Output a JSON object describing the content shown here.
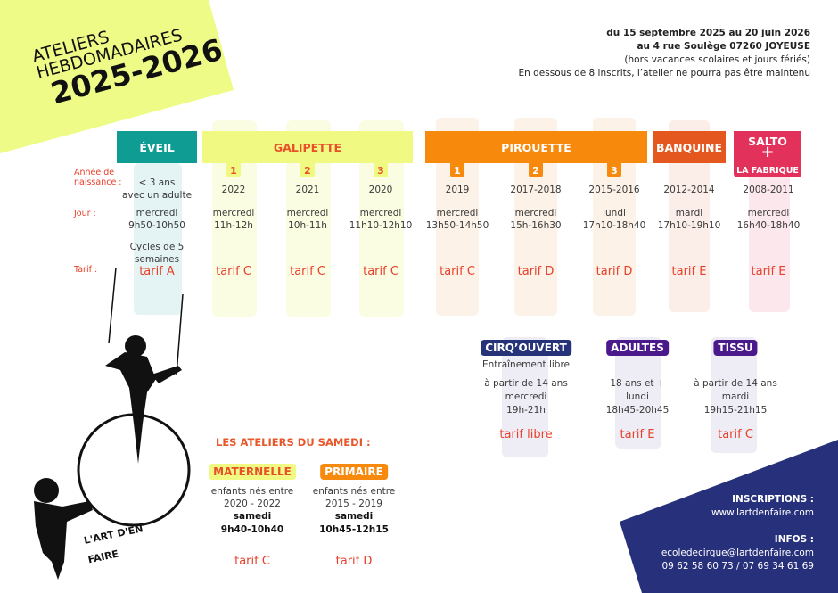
{
  "title": {
    "line1": "ATELIERS",
    "line2": "HEBDOMADAIRES",
    "year": "2025-2026"
  },
  "info": {
    "dates": "du 15 septembre 2025 au 20 juin 2026",
    "address": "au 4 rue Soulège 07260 JOYEUSE",
    "note": "(hors vacances scolaires et jours fériés)",
    "minimum": "En dessous de 8 inscrits, l’atelier ne pourra pas être maintenu"
  },
  "row_labels": {
    "birth": "Année de naissance :",
    "day": "Jour :",
    "price": "Tarif :"
  },
  "groups": {
    "eveil": "ÉVEIL",
    "galipette": "GALIPETTE",
    "pirouette": "PIROUETTE",
    "banquine": "BANQUINE",
    "salto": "SALTO",
    "salto_plus": "+",
    "fabrique": "LA FABRIQUE"
  },
  "columns": [
    {
      "num": "",
      "birth": "< 3 ans\navec un adulte",
      "day": "mercredi",
      "time": "9h50-10h50",
      "extra": "Cycles de 5\nsemaines",
      "tarif": "tarif A"
    },
    {
      "num": "1",
      "birth": "2022",
      "day": "mercredi",
      "time": "11h-12h",
      "tarif": "tarif C"
    },
    {
      "num": "2",
      "birth": "2021",
      "day": "mercredi",
      "time": "10h-11h",
      "tarif": "tarif C"
    },
    {
      "num": "3",
      "birth": "2020",
      "day": "mercredi",
      "time": "11h10-12h10",
      "tarif": "tarif C"
    },
    {
      "num": "1",
      "birth": "2019",
      "day": "mercredi",
      "time": "13h50-14h50",
      "tarif": "tarif C"
    },
    {
      "num": "2",
      "birth": "2017-2018",
      "day": "mercredi",
      "time": "15h-16h30",
      "tarif": "tarif D"
    },
    {
      "num": "3",
      "birth": "2015-2016",
      "day": "lundi",
      "time": "17h10-18h40",
      "tarif": "tarif D"
    },
    {
      "num": "",
      "birth": "2012-2014",
      "day": "mardi",
      "time": "17h10-19h10",
      "tarif": "tarif E"
    },
    {
      "num": "",
      "birth": "2008-2011",
      "day": "mercredi",
      "time": "16h40-18h40",
      "tarif": "tarif E"
    }
  ],
  "evening": [
    {
      "name": "CIRQ’OUVERT",
      "lines": [
        "Entraînement libre",
        "à partir de 14 ans",
        "mercredi",
        "19h-21h"
      ],
      "tarif": "tarif libre"
    },
    {
      "name": "ADULTES",
      "lines": [
        "",
        "18 ans et +",
        "lundi",
        "18h45-20h45"
      ],
      "tarif": "tarif E"
    },
    {
      "name": "TISSU",
      "lines": [
        "",
        "à partir de 14 ans",
        "mardi",
        "19h15-21h15"
      ],
      "tarif": "tarif C"
    }
  ],
  "saturday": {
    "title": "LES ATELIERS DU SAMEDI :",
    "items": [
      {
        "name": "MATERNELLE",
        "born_label": "enfants nés entre",
        "born": "2020 - 2022",
        "day": "samedi",
        "time": "9h40-10h40",
        "tarif": "tarif C"
      },
      {
        "name": "PRIMAIRE",
        "born_label": "enfants nés entre",
        "born": "2015 - 2019",
        "day": "samedi",
        "time": "10h45-12h15",
        "tarif": "tarif D"
      }
    ]
  },
  "contact": {
    "inscriptions_label": "INSCRIPTIONS :",
    "website": "www.lartdenfaire.com",
    "infos_label": "INFOS :",
    "email": "ecoledecirque@lartdenfaire.com",
    "phones": "09 62 58 60 73 / 07 69 34 61 69"
  },
  "logo": {
    "text": "L'ART D'EN FAIRE"
  },
  "colors": {
    "eveil": "#0e9c93",
    "galipette": "#f0fa82",
    "pirouette": "#f78a0c",
    "banquine": "#e4581f",
    "salto": "#e2325c",
    "navy": "#27307a",
    "purple": "#4a1a8c",
    "red_text": "#e8402a"
  }
}
